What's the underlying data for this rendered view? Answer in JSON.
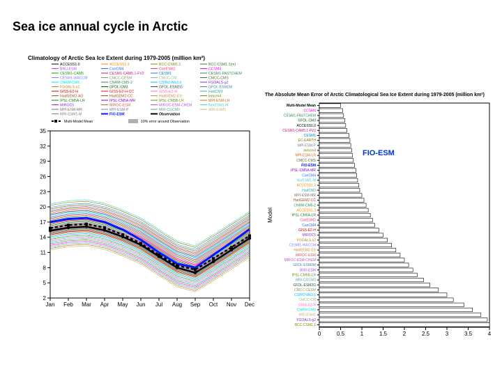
{
  "page": {
    "title": "Sea ice annual cycle in Arctic"
  },
  "callout": "FIO-ESM",
  "leftChart": {
    "title": "Climatology of Arctic Sea Ice Extent during 1979-2005 (million km²)",
    "title_fontsize": 8,
    "months": [
      "Jan",
      "Feb",
      "Mar",
      "Apr",
      "May",
      "Jun",
      "Jul",
      "Aug",
      "Sep",
      "Oct",
      "Nov",
      "Dec"
    ],
    "ylim": [
      2,
      35
    ],
    "yticks": [
      2,
      5,
      8,
      11,
      14,
      17,
      20,
      23,
      26,
      29,
      32,
      35
    ],
    "background": "#ffffff",
    "axis_color": "#000000",
    "legend_multi_model_mean": "Multi-Model Mean",
    "legend_obs_area": "10% error around Observation",
    "legend_cols": [
      [
        "ACCESS1.0",
        "BNU-ESM",
        "CESM1-CAM5",
        "CESM1-WACCM",
        "CNRM-CM5",
        "FGOALS-s2",
        "GISS-E2-H",
        "HadGEM2-AO",
        "IPSL-CM5A-LR",
        "MIROC5",
        "MPI-ESM-MR",
        "MRI-ESM1-M"
      ],
      [
        "ACCESS1.3",
        "CanCM4",
        "CESM1-CAM5.1-FV2",
        "CMCC-CESM",
        "CNRM-CM5-2",
        "GFDL-CM3",
        "GISS-E2-H-CC",
        "HadGEM2-CC",
        "IPSL-CM5A-MR",
        "MIROC-ESM",
        "MPI-ESM-P",
        "FIO-ESM"
      ],
      [
        "BCC-CSM1.1",
        "CanESM2",
        "CESM1",
        "CMCC-CM",
        "CSIRO-Mk3.6",
        "GFDL-ESM2G",
        "GISS-E2-R",
        "HadGEM2-ES",
        "IPSL-CM5B-LR",
        "MIROC-ESM-CHEM",
        "MRI-CGCM3",
        "Observation"
      ],
      [
        "BCC-CSM1.1(m)",
        "CCSM4",
        "CESM1-FASTCHEM",
        "CMCC-CMS",
        "FGOALS-g2",
        "GFDL-ESM2M",
        "HadCM3",
        "inmcm4",
        "MPI-ESM-LR",
        "NorESM1-M",
        "MRI-ESM1",
        ""
      ]
    ],
    "legend_colors": [
      [
        "#000000",
        "#b54aff",
        "#00aa00",
        "#7f7fff",
        "#00e6e6",
        "#b8860b",
        "#cc0000",
        "#a0522d",
        "#1e7f1e",
        "#8a2be2",
        "#7f6f6f",
        "#7f7f7f"
      ],
      [
        "#ff8800",
        "#1a6fff",
        "#c71585",
        "#8a9a5b",
        "#2e8b57",
        "#006400",
        "#ff0000",
        "#a0522d",
        "#9400d3",
        "#cd5c5c",
        "#708090",
        "#0018ff"
      ],
      [
        "#888800",
        "#ff3377",
        "#0088cc",
        "#8fbc8f",
        "#00bfff",
        "#2f4f4f",
        "#ff69b4",
        "#cd853f",
        "#6b8e23",
        "#ba55d3",
        "#5f9ea0",
        "#000000"
      ],
      [
        "#228b22",
        "#ff00ff",
        "#2e8b57",
        "#556b2f",
        "#8a2be2",
        "#4682b4",
        "#20b2aa",
        "#808000",
        "#d2691e",
        "#48d1cc",
        "#bdb76b",
        ""
      ]
    ],
    "bold_entries": [
      "FIO-ESM",
      "Observation"
    ],
    "main_lines": {
      "obs": {
        "color": "#000000",
        "width": 2.5,
        "marker": "circle",
        "values": [
          15.3,
          15.9,
          16.1,
          15.4,
          14.1,
          12.5,
          10.2,
          8.0,
          7.0,
          9.2,
          11.5,
          13.8
        ]
      },
      "multi_model_mean": {
        "color": "#000000",
        "width": 2.5,
        "dash": "4 3",
        "marker": "square",
        "values": [
          15.8,
          16.4,
          16.6,
          15.9,
          14.5,
          12.8,
          10.5,
          8.4,
          7.6,
          9.8,
          12.0,
          14.3
        ]
      },
      "fio_esm": {
        "color": "#0018ff",
        "width": 3.0,
        "values": [
          17.0,
          17.6,
          17.8,
          17.0,
          15.5,
          13.5,
          11.0,
          8.8,
          8.0,
          10.5,
          13.0,
          15.6
        ]
      }
    },
    "spaghetti_colors": [
      "#b54aff",
      "#00aa00",
      "#7f7fff",
      "#00e6e6",
      "#b8860b",
      "#cc0000",
      "#a0522d",
      "#1e7f1e",
      "#8a2be2",
      "#7f6f6f",
      "#ff8800",
      "#1a6fff",
      "#c71585",
      "#8a9a5b",
      "#2e8b57",
      "#006400",
      "#ff0000",
      "#9400d3",
      "#cd5c5c",
      "#708090",
      "#888800",
      "#ff3377",
      "#0088cc",
      "#8fbc8f",
      "#00bfff",
      "#2f4f4f",
      "#ff69b4",
      "#cd853f",
      "#6b8e23",
      "#ba55d3",
      "#5f9ea0",
      "#228b22",
      "#ff00ff",
      "#556b2f",
      "#4682b4",
      "#20b2aa",
      "#808000",
      "#d2691e",
      "#48d1cc",
      "#bdb76b"
    ],
    "spaghetti_base_offsets": [
      -2.0,
      -1.7,
      -1.4,
      -1.2,
      -1.0,
      -0.8,
      -0.6,
      -0.4,
      -0.2,
      0.0,
      0.2,
      0.4,
      0.6,
      0.8,
      1.0,
      1.2,
      1.4,
      1.6,
      1.8,
      2.0,
      2.2,
      2.4,
      2.6,
      2.8,
      3.0,
      3.2,
      3.4,
      3.6,
      3.8,
      4.0,
      -2.3,
      -2.6,
      -2.9,
      4.3,
      4.6,
      -3.2,
      5.0,
      -3.5,
      5.3,
      -3.8
    ],
    "obs_band_halfwidth": 0.9
  },
  "rightChart": {
    "title": "The Absolute Mean Error of Arctic Climatological Sea Ice Extent during 1979-2005 (million km²)",
    "title_fontsize": 7,
    "ylabel": "Model",
    "xlim": [
      0,
      4
    ],
    "xticks": [
      0,
      0.5,
      1,
      1.5,
      2,
      2.5,
      3,
      3.5,
      4
    ],
    "bar_color": "#ffffff",
    "bar_border": "#000000",
    "background": "#ffffff",
    "models": [
      {
        "name": "Multi-Model Mean",
        "color": "#000000",
        "value": 0.5
      },
      {
        "name": "CCSM4",
        "color": "#ff00ff",
        "value": 0.55
      },
      {
        "name": "CESM1-FASTCHEM",
        "color": "#2e8b57",
        "value": 0.57
      },
      {
        "name": "GFDL-CM3",
        "color": "#006400",
        "value": 0.6
      },
      {
        "name": "ACCESS1.0",
        "color": "#000000",
        "value": 0.62
      },
      {
        "name": "CESM1-CAM5.1-FV2",
        "color": "#c71585",
        "value": 0.65
      },
      {
        "name": "CESM1",
        "color": "#0088cc",
        "value": 0.7
      },
      {
        "name": "EC-EARTH",
        "color": "#808000",
        "value": 0.72
      },
      {
        "name": "MPI-ESM-P",
        "color": "#708090",
        "value": 0.74
      },
      {
        "name": "inmcm4",
        "color": "#808000",
        "value": 0.76
      },
      {
        "name": "MPI-ESM-LR",
        "color": "#d2691e",
        "value": 0.78
      },
      {
        "name": "CMCC-CMS",
        "color": "#556b2f",
        "value": 0.8
      },
      {
        "name": "FIO-ESM",
        "color": "#0018ff",
        "value": 0.83
      },
      {
        "name": "IPSL-CM5A-MR",
        "color": "#9400d3",
        "value": 0.86
      },
      {
        "name": "CanCM4",
        "color": "#1a6fff",
        "value": 0.88
      },
      {
        "name": "NorESM1-M",
        "color": "#48d1cc",
        "value": 0.9
      },
      {
        "name": "ACCESS1.3",
        "color": "#ff8800",
        "value": 0.93
      },
      {
        "name": "HadCM3",
        "color": "#20b2aa",
        "value": 0.95
      },
      {
        "name": "MPI-ESM-MR",
        "color": "#7f6f6f",
        "value": 1.0
      },
      {
        "name": "HadGEM2-CC",
        "color": "#a0522d",
        "value": 1.05
      },
      {
        "name": "CNRM-CM5-2",
        "color": "#2e8b57",
        "value": 1.1
      },
      {
        "name": "ACCESS1.3",
        "color": "#ff8800",
        "value": 1.15
      },
      {
        "name": "IPSL-CM5A-LR",
        "color": "#1e7f1e",
        "value": 1.2
      },
      {
        "name": "CanESM2",
        "color": "#ff3377",
        "value": 1.25
      },
      {
        "name": "CanCM4",
        "color": "#1a6fff",
        "value": 1.3
      },
      {
        "name": "GISS-E2-H",
        "color": "#cc0000",
        "value": 1.4
      },
      {
        "name": "MIROC5",
        "color": "#8a2be2",
        "value": 1.5
      },
      {
        "name": "FGOALS-s2",
        "color": "#b8860b",
        "value": 1.6
      },
      {
        "name": "CESM1-WACCM",
        "color": "#7f7fff",
        "value": 1.7
      },
      {
        "name": "HadGEM2-ES",
        "color": "#cd853f",
        "value": 1.8
      },
      {
        "name": "MIROC-ESM",
        "color": "#cd5c5c",
        "value": 1.9
      },
      {
        "name": "MIROC-ESM-CHEM",
        "color": "#ba55d3",
        "value": 2.0
      },
      {
        "name": "GFDL-ESM2M",
        "color": "#4682b4",
        "value": 2.1
      },
      {
        "name": "BNU-ESM",
        "color": "#b54aff",
        "value": 2.2
      },
      {
        "name": "IPSL-CM5B-LR",
        "color": "#6b8e23",
        "value": 2.3
      },
      {
        "name": "MRI-CGCM3",
        "color": "#5f9ea0",
        "value": 2.45
      },
      {
        "name": "GFDL-ESM2G",
        "color": "#2f4f4f",
        "value": 2.6
      },
      {
        "name": "CMCC-CESM",
        "color": "#8a9a5b",
        "value": 2.8
      },
      {
        "name": "CSIRO-Mk3.6",
        "color": "#00bfff",
        "value": 3.0
      },
      {
        "name": "CMCC-CM",
        "color": "#8fbc8f",
        "value": 3.15
      },
      {
        "name": "GISS-E2-R",
        "color": "#ff69b4",
        "value": 3.4
      },
      {
        "name": "CNRM-CM5",
        "color": "#00e6e6",
        "value": 3.6
      },
      {
        "name": "MRI-ESM1",
        "color": "#bdb76b",
        "value": 3.8
      },
      {
        "name": "FGOALS-g2",
        "color": "#8a2be2",
        "value": 3.95
      },
      {
        "name": "BCC-CSM1.1",
        "color": "#888800",
        "value": 4.0
      }
    ]
  }
}
